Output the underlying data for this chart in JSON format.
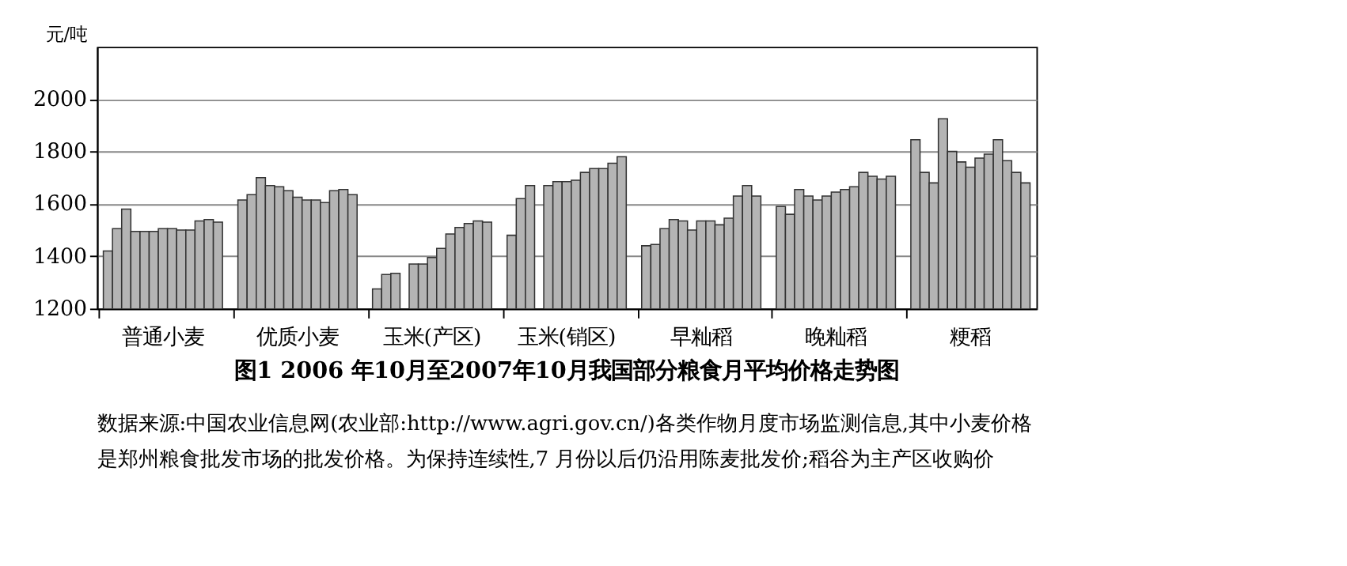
{
  "chart_data": {
    "type": "bar",
    "title": "图1  2006 年10月至2007年10月我国部分粮食月平均价格走势图",
    "ylabel": "元/吨",
    "categories": [
      "普通小麦",
      "优质小麦",
      "玉米(产区)",
      "玉米(销区)",
      "早籼稻",
      "晚籼稻",
      "粳稻"
    ],
    "series": [
      {
        "color": "#b4b4b4",
        "values": [
          1420,
          1615,
          1275,
          1480,
          1440,
          1590,
          1845
        ]
      },
      {
        "color": "#b4b4b4",
        "values": [
          1505,
          1635,
          1330,
          1620,
          1445,
          1560,
          1720
        ]
      },
      {
        "color": "#b4b4b4",
        "values": [
          1580,
          1700,
          1335,
          1670,
          1505,
          1655,
          1680
        ]
      },
      {
        "color": "#b4b4b4",
        "values": [
          1495,
          1670,
          null,
          null,
          1540,
          1630,
          1925
        ]
      },
      {
        "color": "#b4b4b4",
        "values": [
          1495,
          1665,
          1370,
          1670,
          1535,
          1615,
          1800
        ]
      },
      {
        "color": "#b4b4b4",
        "values": [
          1495,
          1650,
          1370,
          1685,
          1500,
          1630,
          1760
        ]
      },
      {
        "color": "#b4b4b4",
        "values": [
          1505,
          1625,
          1395,
          1685,
          1535,
          1645,
          1740
        ]
      },
      {
        "color": "#b4b4b4",
        "values": [
          1505,
          1615,
          1430,
          1690,
          1535,
          1655,
          1775
        ]
      },
      {
        "color": "#b4b4b4",
        "values": [
          1500,
          1615,
          1485,
          1720,
          1520,
          1665,
          1790
        ]
      },
      {
        "color": "#b4b4b4",
        "values": [
          1500,
          1605,
          1510,
          1735,
          1545,
          1720,
          1845
        ]
      },
      {
        "color": "#b4b4b4",
        "values": [
          1535,
          1650,
          1525,
          1735,
          1630,
          1705,
          1765
        ]
      },
      {
        "color": "#b4b4b4",
        "values": [
          1540,
          1655,
          1535,
          1755,
          1670,
          1695,
          1720
        ]
      },
      {
        "color": "#b4b4b4",
        "values": [
          1530,
          1635,
          1530,
          1780,
          1630,
          1705,
          1680
        ]
      }
    ],
    "ylim": [
      1200,
      2200
    ],
    "yticks": [
      1200,
      1400,
      1600,
      1800,
      2000
    ],
    "grid": "y",
    "legend": false,
    "annotations": [
      "数据来源:中国农业信息网(农业部:http://www.agri.gov.cn/)各类作物月度市场监测信息,其中小麦价格",
      "是郑州粮食批发市场的批发价格。为保持连续性,7 月份以后仍沿用陈麦批发价;稻谷为主产区收购价"
    ]
  }
}
